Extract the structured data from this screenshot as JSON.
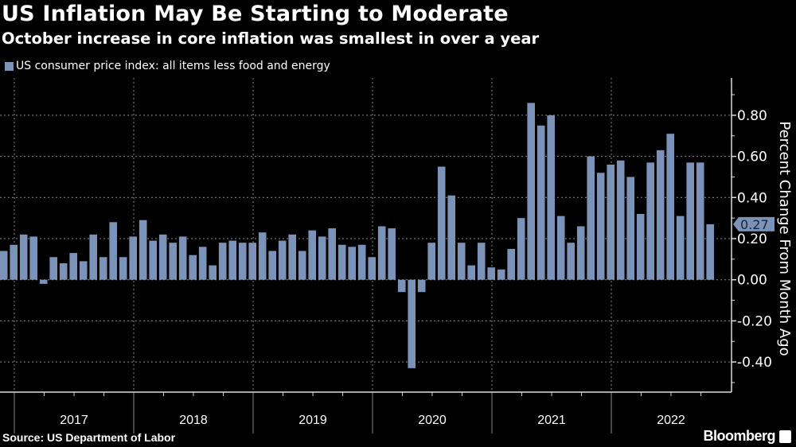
{
  "header": {
    "title": "US Inflation May Be Starting to Moderate",
    "subtitle": "October increase in core inflation was smallest in over a year"
  },
  "footer": {
    "source": "Source: US Department of Labor",
    "brand": "Bloomberg"
  },
  "colors": {
    "bar": "#7b93b9",
    "background": "#000000",
    "grid": "#8a8a8a",
    "text": "#ffffff"
  },
  "chart_data": {
    "type": "bar",
    "title": "US Inflation May Be Starting to Moderate",
    "subtitle": "October increase in core inflation was smallest in over a year",
    "ylabel": "Percent Change From Month Ago",
    "xlabel": "",
    "ylim": [
      -0.5,
      1.0
    ],
    "y_ticks": [
      "0.80",
      "0.60",
      "0.40",
      "0.20",
      "0.00",
      "-0.20",
      "-0.40"
    ],
    "y_tick_values": [
      0.8,
      0.6,
      0.4,
      0.2,
      0,
      -0.2,
      -0.4
    ],
    "x_tick_labels": [
      "2017",
      "2018",
      "2019",
      "2020",
      "2021",
      "2022"
    ],
    "grid": true,
    "y_axis_side": "right",
    "legend_placement": "top-left",
    "last_value_label": "0.27",
    "series": [
      {
        "name": "US consumer price index: all items less food and energy",
        "x": [
          "2016-11",
          "2016-12",
          "2017-01",
          "2017-02",
          "2017-03",
          "2017-04",
          "2017-05",
          "2017-06",
          "2017-07",
          "2017-08",
          "2017-09",
          "2017-10",
          "2017-11",
          "2017-12",
          "2018-01",
          "2018-02",
          "2018-03",
          "2018-04",
          "2018-05",
          "2018-06",
          "2018-07",
          "2018-08",
          "2018-09",
          "2018-10",
          "2018-11",
          "2018-12",
          "2019-01",
          "2019-02",
          "2019-03",
          "2019-04",
          "2019-05",
          "2019-06",
          "2019-07",
          "2019-08",
          "2019-09",
          "2019-10",
          "2019-11",
          "2019-12",
          "2020-01",
          "2020-02",
          "2020-03",
          "2020-04",
          "2020-05",
          "2020-06",
          "2020-07",
          "2020-08",
          "2020-09",
          "2020-10",
          "2020-11",
          "2020-12",
          "2021-01",
          "2021-02",
          "2021-03",
          "2021-04",
          "2021-05",
          "2021-06",
          "2021-07",
          "2021-08",
          "2021-09",
          "2021-10",
          "2021-11",
          "2021-12",
          "2022-01",
          "2022-02",
          "2022-03",
          "2022-04",
          "2022-05",
          "2022-06",
          "2022-07",
          "2022-08",
          "2022-09",
          "2022-10"
        ],
        "values": [
          0.14,
          0.17,
          0.22,
          0.21,
          -0.02,
          0.11,
          0.08,
          0.13,
          0.09,
          0.22,
          0.11,
          0.28,
          0.11,
          0.21,
          0.29,
          0.19,
          0.22,
          0.18,
          0.21,
          0.12,
          0.16,
          0.07,
          0.18,
          0.19,
          0.18,
          0.18,
          0.23,
          0.14,
          0.19,
          0.22,
          0.14,
          0.24,
          0.21,
          0.25,
          0.17,
          0.16,
          0.17,
          0.11,
          0.26,
          0.25,
          -0.06,
          -0.43,
          -0.06,
          0.18,
          0.55,
          0.41,
          0.18,
          0.07,
          0.18,
          0.06,
          0.05,
          0.15,
          0.3,
          0.86,
          0.75,
          0.8,
          0.31,
          0.18,
          0.26,
          0.6,
          0.52,
          0.56,
          0.58,
          0.5,
          0.32,
          0.57,
          0.63,
          0.71,
          0.31,
          0.57,
          0.57,
          0.27
        ]
      }
    ]
  }
}
